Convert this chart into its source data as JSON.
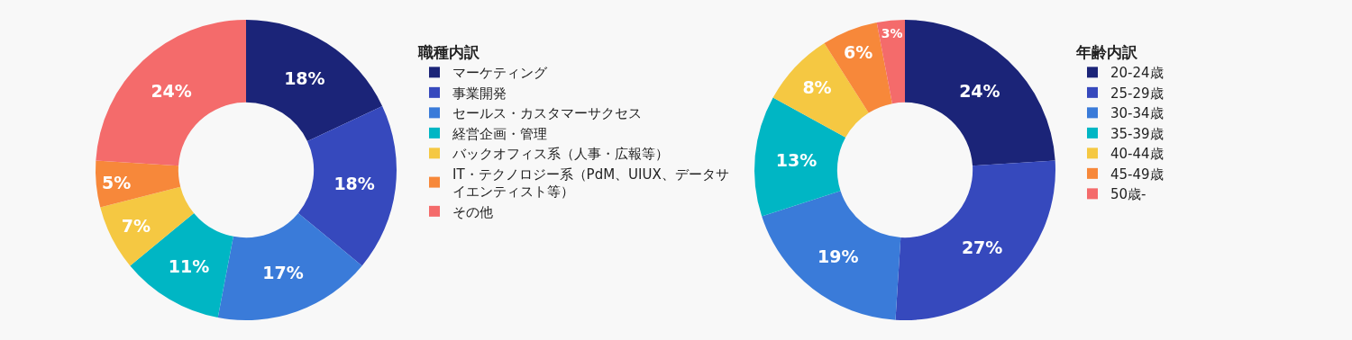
{
  "chart_data": [
    {
      "type": "donut",
      "title": "職種内訳",
      "legend": "right",
      "data_labels": true,
      "categories": [
        "マーケティング",
        "事業開発",
        "セールス・カスタマーサクセス",
        "経営企画・管理",
        "バックオフィス系（人事・広報等）",
        "IT・テクノロジー系（PdM、UIUX、データサイエンティスト等）",
        "その他"
      ],
      "values": [
        18,
        18,
        17,
        11,
        7,
        5,
        24
      ],
      "value_labels": [
        "18%",
        "18%",
        "17%",
        "11%",
        "7%",
        "5%",
        "24%"
      ],
      "colors": [
        "#1b2478",
        "#3649bd",
        "#3a7bd9",
        "#00b6c4",
        "#f5c842",
        "#f7883a",
        "#f46b6b"
      ]
    },
    {
      "type": "donut",
      "title": "年齢内訳",
      "legend": "right",
      "data_labels": true,
      "categories": [
        "20-24歳",
        "25-29歳",
        "30-34歳",
        "35-39歳",
        "40-44歳",
        "45-49歳",
        "50歳-"
      ],
      "values": [
        24,
        27,
        19,
        13,
        8,
        6,
        3
      ],
      "value_labels": [
        "24%",
        "27%",
        "19%",
        "13%",
        "8%",
        "6%",
        "3%"
      ],
      "colors": [
        "#1b2478",
        "#3649bd",
        "#3a7bd9",
        "#00b6c4",
        "#f5c842",
        "#f7883a",
        "#f46b6b"
      ]
    }
  ]
}
